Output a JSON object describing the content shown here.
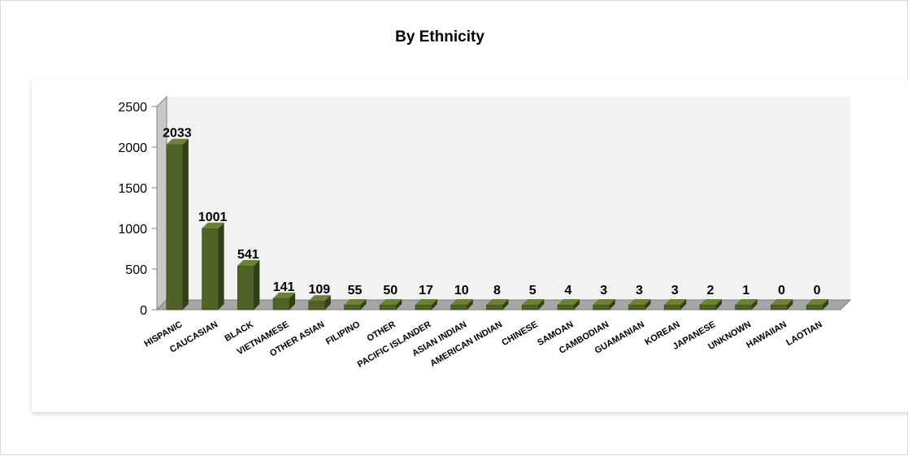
{
  "chart_data": {
    "type": "bar",
    "title": "By Ethnicity",
    "xlabel": "",
    "ylabel": "",
    "categories": [
      "HISPANIC",
      "CAUCASIAN",
      "BLACK",
      "VIETNAMESE",
      "OTHER ASIAN",
      "FILIPINO",
      "OTHER",
      "PACIFIC ISLANDER",
      "ASIAN INDIAN",
      "AMERICAN INDIAN",
      "CHINESE",
      "SAMOAN",
      "CAMBODIAN",
      "GUAMANIAN",
      "KOREAN",
      "JAPANESE",
      "UNKNOWN",
      "HAWAIIAN",
      "LAOTIAN"
    ],
    "values": [
      2033,
      1001,
      541,
      141,
      109,
      55,
      50,
      17,
      10,
      8,
      5,
      4,
      3,
      3,
      3,
      2,
      1,
      0,
      0
    ],
    "ylim": [
      0,
      2500
    ],
    "yticks": [
      0,
      500,
      1000,
      1500,
      2000,
      2500
    ],
    "grid": false,
    "legend": "none",
    "data_labels": true,
    "style": "3d-column",
    "colors": {
      "bar_front": "#4f6228",
      "bar_side": "#334017",
      "bar_top": "#6b8234",
      "wall": "#f2f2f2",
      "floor": "#a6a6a6",
      "axis": "#808080"
    }
  }
}
